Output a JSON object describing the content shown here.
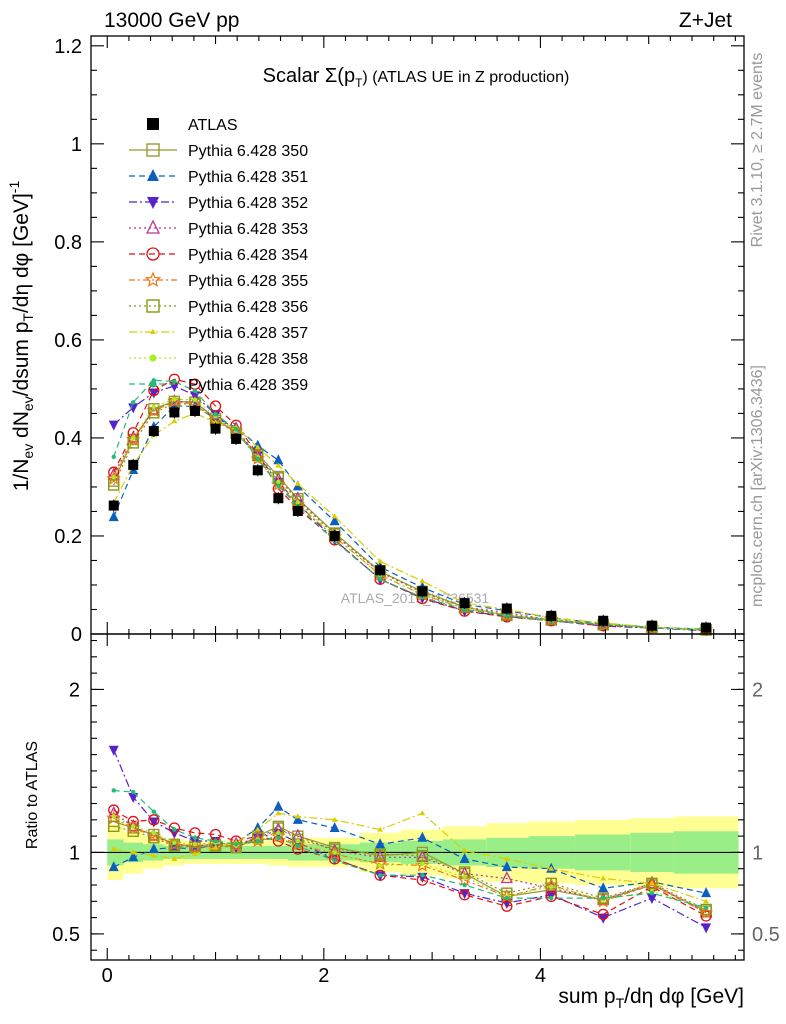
{
  "header": {
    "left": "13000 GeV pp",
    "right": "Z+Jet"
  },
  "side": {
    "rivet": "Rivet 3.1.10, ≥ 2.7M events",
    "mcplots": "mcplots.cern.ch [arXiv:1306.3436]"
  },
  "chart_data": {
    "type": "scatter",
    "title_main": "Scalar Σ(p",
    "title_sub": "T",
    "title_rest": ") (ATLAS UE in Z production)",
    "watermark": "ATLAS_2019_I1736531",
    "xlabel": "sum p_T/dη dφ [GeV]",
    "ylabel": "1/N_ev dN_ev/dsum p_T/dη dφ [GeV]^-1",
    "ratio_ylabel": "Ratio to ATLAS",
    "xlim": [
      -0.15,
      5.88
    ],
    "ylim": [
      0,
      1.22
    ],
    "ratio_ylim": [
      0.34,
      2.34
    ],
    "x_ticks": [
      "0",
      "2",
      "4"
    ],
    "y_ticks": [
      "0",
      "0.2",
      "0.4",
      "0.6",
      "0.8",
      "1",
      "1.2"
    ],
    "ratio_y_ticks": [
      "0.5",
      "1",
      "2"
    ],
    "x": [
      0.06,
      0.24,
      0.43,
      0.62,
      0.81,
      1.0,
      1.19,
      1.39,
      1.58,
      1.76,
      2.1,
      2.52,
      2.91,
      3.3,
      3.69,
      4.1,
      4.58,
      5.03,
      5.53
    ],
    "data": {
      "name": "ATLAS",
      "values": [
        0.262,
        0.345,
        0.414,
        0.452,
        0.455,
        0.419,
        0.398,
        0.334,
        0.277,
        0.251,
        0.2,
        0.13,
        0.087,
        0.063,
        0.052,
        0.037,
        0.027,
        0.017,
        0.013
      ]
    },
    "band_x_edges": [
      0.0,
      0.15,
      0.33,
      0.52,
      0.71,
      0.9,
      1.1,
      1.29,
      1.48,
      1.67,
      1.86,
      2.33,
      2.71,
      3.1,
      3.5,
      3.89,
      4.32,
      4.83,
      5.23,
      5.83
    ],
    "band_inner": [
      0.08,
      0.06,
      0.05,
      0.04,
      0.04,
      0.04,
      0.04,
      0.04,
      0.04,
      0.05,
      0.05,
      0.06,
      0.07,
      0.08,
      0.09,
      0.1,
      0.11,
      0.12,
      0.13
    ],
    "band_outer": [
      0.17,
      0.13,
      0.1,
      0.08,
      0.07,
      0.07,
      0.07,
      0.07,
      0.08,
      0.09,
      0.09,
      0.12,
      0.14,
      0.16,
      0.18,
      0.19,
      0.2,
      0.21,
      0.22
    ],
    "series": [
      {
        "name": "Pythia 6.428 350",
        "color": "#999933",
        "marker": "square-open",
        "dash": "",
        "ratio": [
          1.19,
          1.15,
          1.11,
          1.05,
          1.04,
          1.05,
          1.03,
          1.1,
          1.16,
          1.1,
          1.03,
          0.98,
          1.0,
          0.87,
          0.73,
          0.77,
          0.71,
          0.8,
          0.64
        ]
      },
      {
        "name": "Pythia 6.428 351",
        "color": "#0B5FBF",
        "marker": "triangle-up",
        "dash": "6,4",
        "ratio": [
          0.91,
          0.97,
          1.02,
          1.03,
          1.02,
          1.05,
          1.06,
          1.15,
          1.28,
          1.2,
          1.15,
          1.05,
          1.09,
          0.96,
          0.91,
          0.9,
          0.78,
          0.82,
          0.75
        ]
      },
      {
        "name": "Pythia 6.428 352",
        "color": "#5522CC",
        "marker": "triangle-down",
        "dash": "8,3,2,3",
        "ratio": [
          1.63,
          1.34,
          1.19,
          1.12,
          1.07,
          1.07,
          1.03,
          1.09,
          1.12,
          1.06,
          0.96,
          0.86,
          0.85,
          0.75,
          0.69,
          0.74,
          0.6,
          0.72,
          0.54
        ]
      },
      {
        "name": "Pythia 6.428 353",
        "color": "#BB3399",
        "marker": "triangle-open",
        "dash": "2,3",
        "ratio": [
          1.24,
          1.16,
          1.1,
          1.05,
          1.04,
          1.05,
          1.05,
          1.09,
          1.14,
          1.1,
          1.01,
          0.97,
          0.97,
          0.87,
          0.84,
          0.78,
          0.71,
          0.81,
          0.63
        ]
      },
      {
        "name": "Pythia 6.428 354",
        "color": "#DD1111",
        "marker": "circle-open",
        "dash": "6,4",
        "ratio": [
          1.26,
          1.19,
          1.2,
          1.15,
          1.12,
          1.11,
          1.07,
          1.1,
          1.07,
          1.02,
          0.96,
          0.86,
          0.83,
          0.74,
          0.67,
          0.73,
          0.62,
          0.79,
          0.61
        ]
      },
      {
        "name": "Pythia 6.428 355",
        "color": "#EE7711",
        "marker": "star-open",
        "dash": "6,3,2,3",
        "ratio": [
          1.21,
          1.15,
          1.1,
          1.05,
          1.03,
          1.04,
          1.04,
          1.07,
          1.1,
          1.05,
          0.99,
          0.93,
          0.92,
          0.83,
          0.73,
          0.8,
          0.7,
          0.8,
          0.63
        ]
      },
      {
        "name": "Pythia 6.428 356",
        "color": "#889911",
        "marker": "square-open",
        "dash": "2,3",
        "ratio": [
          1.16,
          1.13,
          1.09,
          1.04,
          1.03,
          1.04,
          1.03,
          1.09,
          1.15,
          1.08,
          1.02,
          0.99,
          0.98,
          0.88,
          0.75,
          0.81,
          0.72,
          0.81,
          0.65
        ]
      },
      {
        "name": "Pythia 6.428 357",
        "color": "#DDCC00",
        "marker": "tri-small",
        "dash": "8,3,2,3",
        "ratio": [
          1.02,
          1.0,
          0.98,
          0.96,
          0.99,
          1.03,
          1.06,
          1.14,
          1.24,
          1.22,
          1.2,
          1.14,
          1.24,
          1.01,
          0.96,
          0.9,
          0.84,
          0.81,
          0.7
        ]
      },
      {
        "name": "Pythia 6.428 358",
        "color": "#AAEE22",
        "marker": "dot",
        "dash": "2,3",
        "ratio": [
          1.22,
          1.16,
          1.12,
          1.06,
          1.05,
          1.06,
          1.04,
          1.08,
          1.12,
          1.07,
          1.0,
          0.92,
          0.93,
          0.85,
          0.73,
          0.79,
          0.71,
          0.76,
          0.66
        ]
      },
      {
        "name": "Pythia 6.428 359",
        "color": "#22BB77",
        "marker": "dot",
        "dash": "6,4",
        "ratio": [
          1.38,
          1.37,
          1.25,
          1.14,
          1.09,
          1.07,
          1.05,
          1.07,
          1.09,
          1.04,
          0.95,
          0.86,
          0.86,
          0.8,
          0.72,
          0.72,
          0.72,
          0.75,
          0.66
        ]
      }
    ]
  }
}
